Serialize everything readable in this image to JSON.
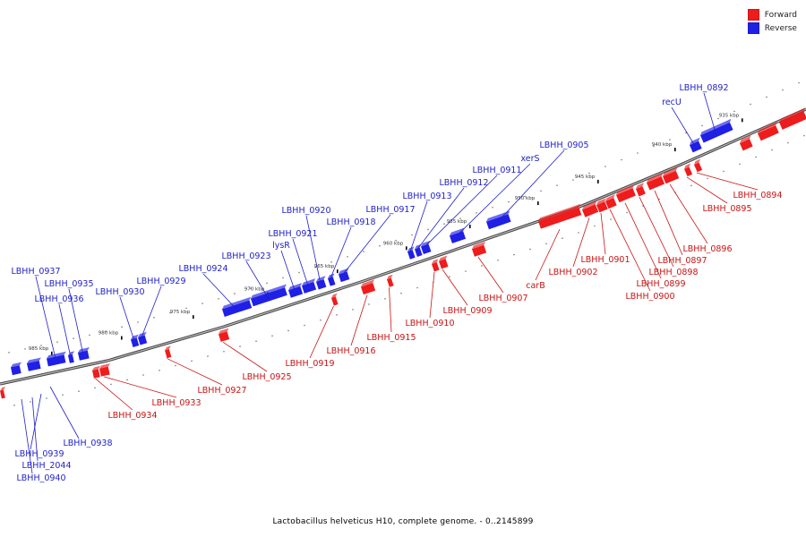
{
  "colors": {
    "forward": "#ee1c1c",
    "reverse": "#1f1fe6",
    "forward_label": "#c81414",
    "reverse_label": "#1f1fc8",
    "backbone": "#777777"
  },
  "legend": {
    "forward": "Forward",
    "reverse": "Reverse"
  },
  "caption": "Lactobacillus helveticus H10, complete genome. - 0..2145899",
  "ticks": [
    "935 kbp",
    "940 kbp",
    "945 kbp",
    "950 kbp",
    "955 kbp",
    "960 kbp",
    "965 kbp",
    "970 kbp",
    "975 kbp",
    "980 kbp",
    "985 kbp"
  ],
  "genes_reverse": [
    "LBHH_0892",
    "recU",
    "LBHH_0905",
    "xerS",
    "LBHH_0911",
    "LBHH_0912",
    "LBHH_0913",
    "LBHH_0917",
    "LBHH_0918",
    "LBHH_0920",
    "LBHH_0921",
    "lysR",
    "LBHH_0923",
    "LBHH_0924",
    "LBHH_0929",
    "LBHH_0930",
    "LBHH_0935",
    "LBHH_0937",
    "LBHH_0936",
    "LBHH_0938",
    "LBHH_0939",
    "LBHH_2044",
    "LBHH_0940"
  ],
  "genes_forward": [
    "LBHH_0894",
    "LBHH_0895",
    "LBHH_0896",
    "LBHH_0897",
    "LBHH_0898",
    "LBHH_0899",
    "LBHH_0900",
    "LBHH_0901",
    "LBHH_0902",
    "carB",
    "LBHH_0907",
    "LBHH_0909",
    "LBHH_0910",
    "LBHH_0915",
    "LBHH_0916",
    "LBHH_0919",
    "LBHH_0925",
    "LBHH_0927",
    "LBHH_0933",
    "LBHH_0934"
  ]
}
